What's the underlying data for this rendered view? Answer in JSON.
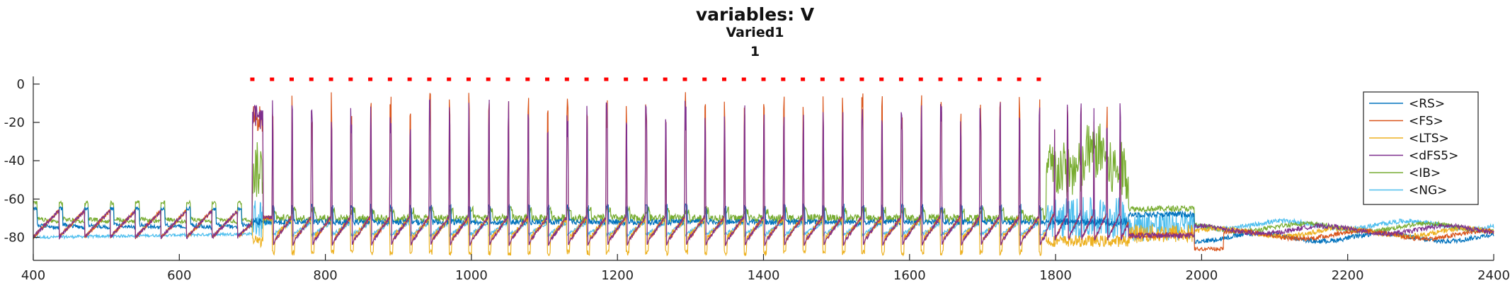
{
  "chart_data": {
    "type": "line",
    "title": "variables: V",
    "subtitle": "Varied1",
    "subtitle2": "1",
    "xlabel": "",
    "ylabel": "",
    "xlim": [
      400,
      2400
    ],
    "ylim": [
      -92,
      4
    ],
    "xticks": [
      400,
      600,
      800,
      1000,
      1200,
      1400,
      1600,
      1800,
      2000,
      2200,
      2400
    ],
    "yticks": [
      0,
      -20,
      -40,
      -60,
      -80
    ],
    "grid": false,
    "legend_position": "right",
    "stim_markers": {
      "color": "#ff0000",
      "y": 2.5,
      "x_start": 700,
      "x_end": 1777,
      "count": 41
    },
    "series": [
      {
        "name": "<RS>",
        "color": "#0072BD",
        "baseline": -73,
        "spike_peak": -60
      },
      {
        "name": "<FS>",
        "color": "#D95319",
        "baseline": -84,
        "spike_peak": -4
      },
      {
        "name": "<LTS>",
        "color": "#EDB120",
        "baseline": -86,
        "spike_peak": -70
      },
      {
        "name": "<dFS5>",
        "color": "#7E2F8E",
        "baseline": -84,
        "spike_peak": -8
      },
      {
        "name": "<IB>",
        "color": "#77AC30",
        "baseline": -70,
        "spike_peak": -62
      },
      {
        "name": "<NG>",
        "color": "#4DBEEE",
        "baseline": -78,
        "spike_peak": -74
      }
    ]
  }
}
